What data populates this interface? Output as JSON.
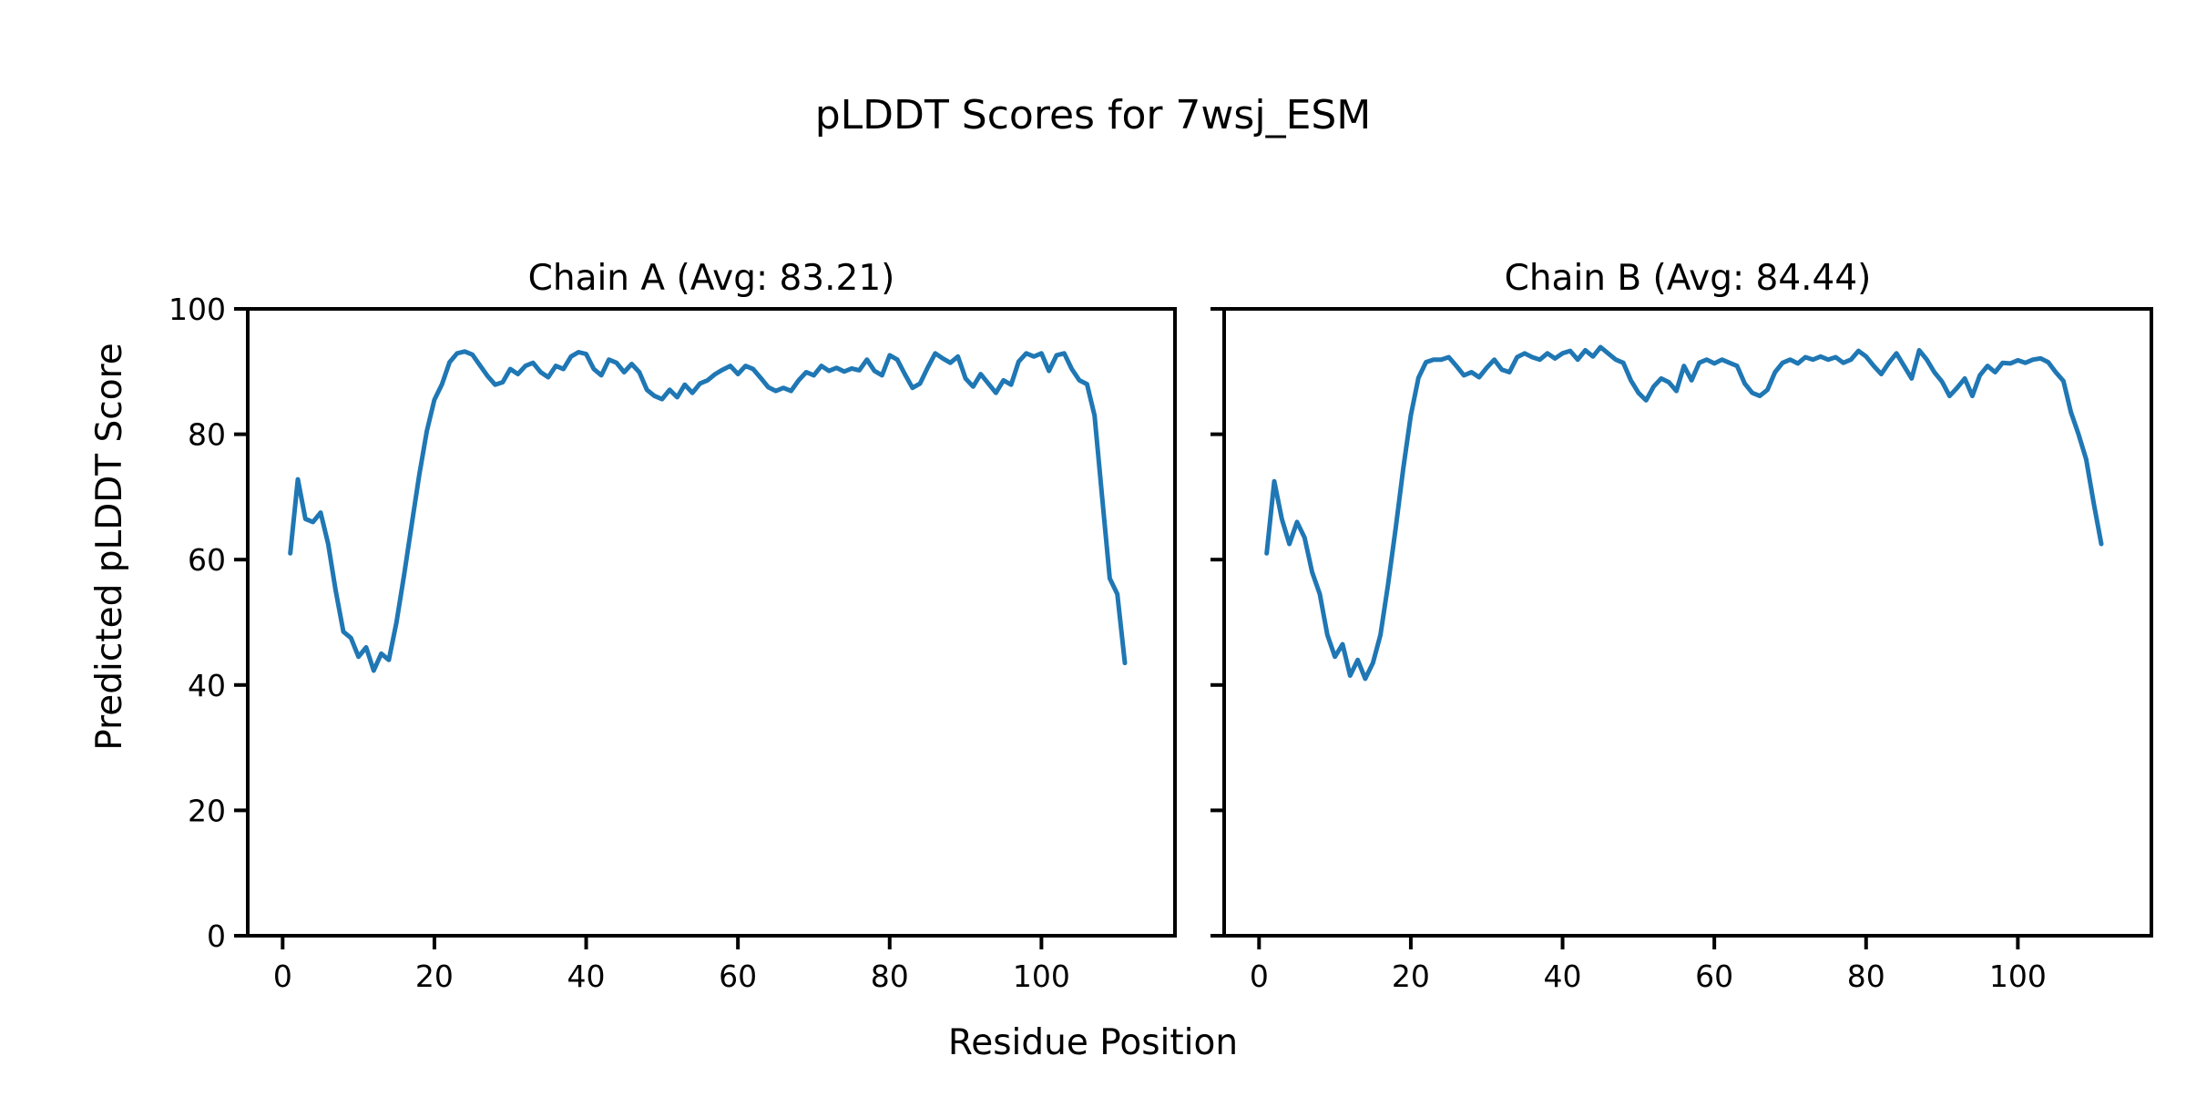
{
  "figure": {
    "suptitle": "pLDDT Scores for 7wsj_ESM",
    "xlabel": "Residue Position",
    "ylabel": "Predicted pLDDT Score",
    "background_color": "#ffffff",
    "text_color": "#000000",
    "spine_color": "#000000"
  },
  "chart_data": [
    {
      "type": "line",
      "title": "Chain A (Avg: 83.21)",
      "chain": "A",
      "avg": 83.21,
      "line_color": "#1f77b4",
      "grid": false,
      "legend": null,
      "xlim": [
        -4.6,
        117.6
      ],
      "ylim": [
        0,
        100
      ],
      "xticks": [
        0,
        20,
        40,
        60,
        80,
        100
      ],
      "yticks": [
        0,
        20,
        40,
        60,
        80,
        100
      ],
      "show_ytick_labels": true,
      "x_start": 1,
      "values": [
        61.0,
        72.8,
        66.5,
        66.0,
        67.5,
        62.5,
        55.0,
        48.5,
        47.5,
        44.5,
        46.0,
        42.3,
        45.0,
        44.0,
        50.0,
        57.5,
        65.5,
        73.5,
        80.5,
        85.5,
        88.0,
        91.5,
        92.9,
        93.2,
        92.7,
        91.0,
        89.3,
        87.9,
        88.3,
        90.4,
        89.6,
        90.9,
        91.4,
        89.9,
        89.1,
        90.9,
        90.4,
        92.4,
        93.1,
        92.8,
        90.4,
        89.4,
        91.9,
        91.4,
        89.9,
        91.2,
        89.9,
        87.1,
        86.1,
        85.6,
        87.1,
        85.9,
        87.9,
        86.6,
        88.1,
        88.6,
        89.6,
        90.3,
        90.9,
        89.6,
        90.9,
        90.4,
        89.0,
        87.5,
        86.9,
        87.4,
        86.9,
        88.6,
        89.9,
        89.4,
        90.9,
        90.1,
        90.6,
        90.0,
        90.5,
        90.2,
        91.9,
        90.1,
        89.4,
        92.6,
        91.9,
        89.6,
        87.4,
        88.1,
        90.6,
        92.9,
        92.1,
        91.4,
        92.4,
        88.9,
        87.6,
        89.6,
        88.1,
        86.6,
        88.6,
        87.9,
        91.6,
        92.9,
        92.4,
        92.9,
        90.1,
        92.6,
        92.9,
        90.4,
        88.6,
        88.0,
        83.0,
        70.0,
        57.0,
        54.5,
        43.5
      ]
    },
    {
      "type": "line",
      "title": "Chain B (Avg: 84.44)",
      "chain": "B",
      "avg": 84.44,
      "line_color": "#1f77b4",
      "grid": false,
      "legend": null,
      "xlim": [
        -4.6,
        117.6
      ],
      "ylim": [
        0,
        100
      ],
      "xticks": [
        0,
        20,
        40,
        60,
        80,
        100
      ],
      "yticks": [
        0,
        20,
        40,
        60,
        80,
        100
      ],
      "show_ytick_labels": false,
      "x_start": 1,
      "values": [
        61.0,
        72.5,
        66.5,
        62.5,
        66.0,
        63.5,
        58.0,
        54.5,
        48.0,
        44.5,
        46.5,
        41.5,
        44.0,
        41.0,
        43.5,
        48.0,
        56.0,
        65.0,
        74.5,
        83.0,
        89.0,
        91.5,
        91.9,
        91.9,
        92.3,
        90.9,
        89.4,
        89.9,
        89.1,
        90.6,
        91.9,
        90.3,
        89.9,
        92.3,
        92.9,
        92.3,
        91.9,
        92.9,
        92.1,
        92.9,
        93.3,
        91.9,
        93.4,
        92.4,
        93.9,
        92.9,
        91.9,
        91.4,
        88.6,
        86.6,
        85.4,
        87.6,
        88.9,
        88.3,
        86.9,
        90.9,
        88.6,
        91.4,
        91.9,
        91.3,
        91.9,
        91.4,
        90.9,
        88.1,
        86.6,
        86.1,
        87.1,
        89.9,
        91.4,
        91.9,
        91.3,
        92.3,
        91.9,
        92.4,
        91.9,
        92.3,
        91.4,
        91.9,
        93.3,
        92.4,
        90.9,
        89.6,
        91.4,
        92.9,
        90.9,
        88.9,
        93.4,
        91.9,
        89.9,
        88.4,
        86.1,
        87.4,
        88.9,
        86.1,
        89.4,
        90.9,
        89.9,
        91.4,
        91.3,
        91.8,
        91.4,
        91.9,
        92.1,
        91.5,
        89.9,
        88.5,
        83.5,
        80.0,
        76.0,
        69.0,
        62.5
      ]
    }
  ]
}
